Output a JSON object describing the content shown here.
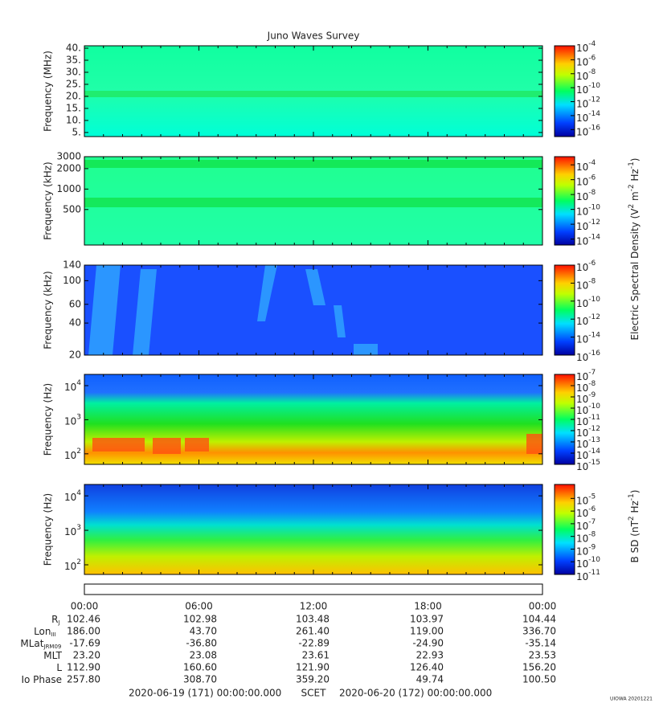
{
  "chart_data": {
    "type": "spectrogram",
    "title": "Juno Waves Survey",
    "panels": [
      {
        "ylabel": "Frequency (MHz)",
        "ylim": [
          3.3,
          41
        ],
        "log": false,
        "yticks": [
          {
            "value": 5,
            "label": "5."
          },
          {
            "value": 10,
            "label": "10."
          },
          {
            "value": 15,
            "label": "15."
          },
          {
            "value": 20,
            "label": "20."
          },
          {
            "value": 25,
            "label": "25."
          },
          {
            "value": 30,
            "label": "30."
          },
          {
            "value": 35,
            "label": "35."
          },
          {
            "value": 40,
            "label": "40."
          }
        ],
        "cblim": [
          -17,
          -4
        ],
        "cb_exponents": [
          -4,
          -6,
          -8,
          -10,
          -12,
          -14,
          -16
        ]
      },
      {
        "ylabel": "Frequency (kHz)",
        "ylim": [
          150,
          3000
        ],
        "log": true,
        "yticks": [
          500,
          1000,
          2000,
          3000
        ],
        "cblim": [
          -14.8,
          -2.9
        ],
        "cb_exponents": [
          -4,
          -6,
          -8,
          -10,
          -12,
          -14
        ]
      },
      {
        "ylabel": "Frequency (kHz)",
        "ylim": [
          20,
          140
        ],
        "log": true,
        "yticks": [
          20,
          40,
          60,
          100,
          140
        ],
        "cblim": [
          -16,
          -6
        ],
        "cb_exponents": [
          -6,
          -8,
          -10,
          -12,
          -14,
          -16
        ]
      },
      {
        "ylabel": "Frequency (Hz)",
        "ylim": [
          1.69,
          4.33
        ],
        "log": false,
        "ytick_exponents": [
          2,
          3,
          4
        ],
        "cblim": [
          -15,
          -7
        ],
        "cb_exponents": [
          -7,
          -8,
          -9,
          -10,
          -11,
          -12,
          -13,
          -14,
          -15
        ]
      },
      {
        "ylabel": "Frequency (Hz)",
        "ylim": [
          1.72,
          4.33
        ],
        "log": false,
        "ytick_exponents": [
          2,
          3,
          4
        ],
        "cblim": [
          -11,
          -3.9
        ],
        "cb_exponents": [
          -5,
          -6,
          -7,
          -8,
          -9,
          -10,
          -11
        ]
      }
    ],
    "base": "10",
    "cb_label_electric": [
      "Electric Spectral Density (V",
      "2",
      " m",
      "-2",
      " Hz",
      "-1",
      ")"
    ],
    "cb_label_magnetic": [
      "B SD (nT",
      "2",
      " Hz",
      "-1",
      ")"
    ],
    "time_labels": [
      "00:00",
      "06:00",
      "12:00",
      "18:00",
      "00:00"
    ],
    "ephemeris": [
      {
        "label": "R",
        "sub": "J",
        "values": [
          "102.46",
          "102.98",
          "103.48",
          "103.97",
          "104.44"
        ]
      },
      {
        "label": "Lon",
        "sub": "III",
        "values": [
          "186.00",
          "43.70",
          "261.40",
          "119.00",
          "336.70"
        ]
      },
      {
        "label": "MLat",
        "sub": "JRM09",
        "values": [
          "-17.69",
          "-36.80",
          "-22.89",
          "-24.90",
          "-35.14"
        ]
      },
      {
        "label": "MLT",
        "values": [
          "23.20",
          "23.08",
          "23.61",
          "22.93",
          "23.53"
        ]
      },
      {
        "label": "L",
        "values": [
          "112.90",
          "160.60",
          "121.90",
          "126.40",
          "156.20"
        ]
      },
      {
        "label": "Io Phase",
        "values": [
          "257.80",
          "308.70",
          "359.20",
          "49.74",
          "100.50"
        ]
      }
    ],
    "footer_start": "2020-06-19 (171) 00:00:00.000",
    "footer_scet": "SCET",
    "footer_end": "2020-06-20 (172) 00:00:00.000",
    "credit": "UIOWA 20201221"
  }
}
